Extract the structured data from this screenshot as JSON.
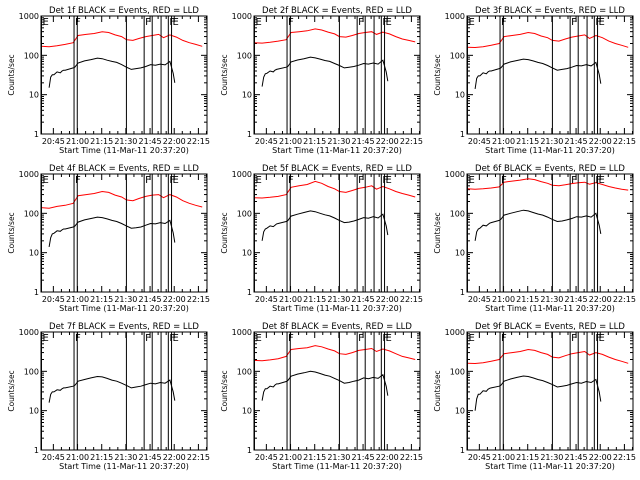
{
  "chart_data": {
    "type": "line",
    "ylabel": "Counts/sec",
    "xlabel": "Start Time (11-Mar-11 20:37:20)",
    "x_tick_labels": [
      "20:45",
      "21:00",
      "21:15",
      "21:30",
      "21:45",
      "22:00",
      "22:15"
    ],
    "x_tick_minutes": [
      7.67,
      22.67,
      37.67,
      52.67,
      67.67,
      82.67,
      97.67
    ],
    "xlim_minutes": [
      0,
      103
    ],
    "y_scale": "log",
    "ylim": [
      1,
      1000
    ],
    "y_tick_labels": [
      "1",
      "10",
      "100",
      "1000"
    ],
    "y_tick_values": [
      1,
      10,
      100,
      1000
    ],
    "colors": {
      "events": "#000000",
      "lld": "#ff0000",
      "axes": "#000000"
    },
    "markers": [
      {
        "label": "E",
        "minute": 0.3
      },
      {
        "label": "F",
        "minute": 20.5
      },
      {
        "label": "",
        "minute": 22.5
      },
      {
        "label": "",
        "minute": 53.0
      },
      {
        "label": "F",
        "minute": 64.0
      },
      {
        "label": "",
        "minute": 69.0
      },
      {
        "label": "",
        "minute": 74.5
      },
      {
        "label": "F",
        "minute": 79.0
      },
      {
        "label": "E",
        "minute": 81.0
      }
    ],
    "panels": [
      {
        "title": "Det 1f BLACK = Events, RED = LLD",
        "events": {
          "minutes": [
            5,
            6,
            7,
            8,
            10,
            12,
            13,
            14,
            15,
            20,
            21,
            23,
            27,
            31,
            35,
            38,
            41,
            44,
            47,
            50,
            53,
            56,
            59,
            62,
            65,
            68,
            71,
            74,
            77,
            80,
            82,
            83
          ],
          "values": [
            15,
            28,
            32,
            32,
            38,
            36,
            40,
            42,
            42,
            48,
            50,
            64,
            72,
            78,
            85,
            82,
            75,
            70,
            66,
            58,
            50,
            44,
            46,
            48,
            52,
            58,
            56,
            60,
            57,
            70,
            35,
            20
          ]
        },
        "lld": {
          "minutes": [
            0,
            5,
            10,
            15,
            20,
            23,
            28,
            33,
            38,
            42,
            46,
            50,
            53,
            57,
            61,
            65,
            69,
            73,
            76,
            80,
            84,
            88,
            92,
            96,
            100
          ],
          "values": [
            170,
            165,
            175,
            190,
            210,
            320,
            340,
            360,
            400,
            380,
            330,
            300,
            250,
            240,
            270,
            300,
            320,
            340,
            280,
            330,
            290,
            240,
            210,
            190,
            170
          ]
        }
      },
      {
        "title": "Det 2f BLACK = Events, RED = LLD",
        "events": {
          "minutes": [
            5,
            6,
            7,
            8,
            10,
            12,
            13,
            14,
            15,
            20,
            21,
            23,
            27,
            31,
            35,
            38,
            41,
            44,
            47,
            50,
            53,
            56,
            59,
            62,
            65,
            68,
            71,
            74,
            77,
            80,
            82,
            83
          ],
          "values": [
            16,
            28,
            34,
            35,
            40,
            38,
            42,
            44,
            45,
            50,
            52,
            68,
            76,
            82,
            90,
            86,
            80,
            74,
            70,
            62,
            55,
            48,
            50,
            52,
            56,
            62,
            60,
            64,
            60,
            75,
            38,
            22
          ]
        },
        "lld": {
          "minutes": [
            0,
            5,
            10,
            15,
            20,
            23,
            28,
            33,
            38,
            42,
            46,
            50,
            53,
            57,
            61,
            65,
            69,
            73,
            76,
            80,
            84,
            88,
            92,
            96,
            100
          ],
          "values": [
            210,
            205,
            215,
            230,
            250,
            380,
            400,
            420,
            470,
            440,
            390,
            350,
            300,
            290,
            320,
            360,
            380,
            400,
            340,
            390,
            350,
            300,
            260,
            240,
            220
          ]
        }
      },
      {
        "title": "Det 3f BLACK = Events, RED = LLD",
        "events": {
          "minutes": [
            5,
            6,
            7,
            8,
            10,
            12,
            13,
            14,
            15,
            20,
            21,
            23,
            27,
            31,
            35,
            38,
            41,
            44,
            47,
            50,
            53,
            56,
            59,
            62,
            65,
            68,
            71,
            74,
            77,
            80,
            82,
            83
          ],
          "values": [
            14,
            26,
            30,
            30,
            36,
            34,
            38,
            40,
            40,
            46,
            48,
            60,
            68,
            74,
            80,
            78,
            72,
            66,
            62,
            55,
            48,
            42,
            44,
            46,
            50,
            55,
            54,
            58,
            54,
            66,
            33,
            19
          ]
        },
        "lld": {
          "minutes": [
            0,
            5,
            10,
            15,
            20,
            23,
            28,
            33,
            38,
            42,
            46,
            50,
            53,
            57,
            61,
            65,
            69,
            73,
            76,
            80,
            84,
            88,
            92,
            96,
            100
          ],
          "values": [
            160,
            158,
            165,
            180,
            200,
            300,
            320,
            340,
            380,
            360,
            310,
            280,
            240,
            230,
            260,
            290,
            310,
            330,
            270,
            320,
            280,
            230,
            200,
            180,
            160
          ]
        }
      },
      {
        "title": "Det 4f BLACK = Events, RED = LLD",
        "events": {
          "minutes": [
            5,
            6,
            7,
            8,
            10,
            12,
            13,
            14,
            15,
            20,
            21,
            23,
            27,
            31,
            35,
            38,
            41,
            44,
            47,
            50,
            53,
            56,
            59,
            62,
            65,
            68,
            71,
            74,
            77,
            80,
            82,
            83
          ],
          "values": [
            14,
            24,
            30,
            31,
            36,
            35,
            38,
            40,
            40,
            45,
            47,
            60,
            68,
            74,
            80,
            78,
            72,
            66,
            62,
            55,
            48,
            42,
            43,
            45,
            50,
            55,
            54,
            58,
            55,
            66,
            32,
            18
          ]
        },
        "lld": {
          "minutes": [
            0,
            5,
            10,
            15,
            20,
            23,
            28,
            33,
            38,
            42,
            46,
            50,
            53,
            57,
            61,
            65,
            69,
            73,
            76,
            80,
            84,
            88,
            92,
            96,
            100
          ],
          "values": [
            140,
            135,
            150,
            160,
            180,
            280,
            300,
            320,
            360,
            340,
            290,
            260,
            220,
            210,
            240,
            270,
            290,
            300,
            250,
            300,
            260,
            210,
            180,
            160,
            145
          ]
        }
      },
      {
        "title": "Det 5f BLACK = Events, RED = LLD",
        "events": {
          "minutes": [
            5,
            6,
            7,
            8,
            10,
            12,
            13,
            14,
            15,
            20,
            21,
            23,
            27,
            31,
            35,
            38,
            41,
            44,
            47,
            50,
            53,
            56,
            59,
            62,
            65,
            68,
            71,
            74,
            77,
            80,
            82,
            83
          ],
          "values": [
            20,
            34,
            40,
            42,
            48,
            46,
            50,
            54,
            55,
            62,
            65,
            85,
            95,
            105,
            115,
            110,
            100,
            92,
            86,
            76,
            66,
            58,
            60,
            64,
            70,
            78,
            75,
            82,
            76,
            95,
            48,
            28
          ]
        },
        "lld": {
          "minutes": [
            0,
            5,
            10,
            15,
            20,
            23,
            28,
            33,
            38,
            42,
            46,
            50,
            53,
            57,
            61,
            65,
            69,
            73,
            76,
            80,
            84,
            88,
            92,
            96,
            100
          ],
          "values": [
            250,
            245,
            255,
            270,
            300,
            460,
            500,
            540,
            650,
            580,
            480,
            420,
            360,
            340,
            380,
            430,
            460,
            500,
            410,
            480,
            420,
            360,
            320,
            290,
            260
          ]
        }
      },
      {
        "title": "Det 6f BLACK = Events, RED = LLD",
        "events": {
          "minutes": [
            5,
            6,
            7,
            8,
            10,
            12,
            13,
            14,
            15,
            20,
            21,
            23,
            27,
            31,
            35,
            38,
            41,
            44,
            47,
            50,
            53,
            56,
            59,
            62,
            65,
            68,
            71,
            74,
            77,
            80,
            82,
            83
          ],
          "values": [
            20,
            34,
            40,
            42,
            50,
            48,
            52,
            56,
            58,
            66,
            70,
            90,
            100,
            110,
            120,
            115,
            105,
            96,
            90,
            80,
            70,
            62,
            64,
            68,
            74,
            82,
            80,
            86,
            80,
            100,
            50,
            30
          ]
        },
        "lld": {
          "minutes": [
            0,
            5,
            10,
            15,
            20,
            23,
            28,
            33,
            38,
            42,
            46,
            50,
            53,
            57,
            61,
            65,
            69,
            73,
            76,
            80,
            84,
            88,
            92,
            96,
            100
          ],
          "values": [
            420,
            410,
            420,
            440,
            470,
            620,
            660,
            700,
            760,
            720,
            640,
            580,
            520,
            500,
            530,
            570,
            600,
            620,
            550,
            600,
            540,
            480,
            440,
            410,
            390
          ]
        }
      },
      {
        "title": "Det 7f BLACK = Events, RED = LLD",
        "events": {
          "minutes": [
            5,
            6,
            7,
            8,
            10,
            12,
            13,
            14,
            15,
            20,
            21,
            23,
            27,
            31,
            35,
            38,
            41,
            44,
            47,
            50,
            53,
            56,
            59,
            62,
            65,
            68,
            71,
            74,
            77,
            80,
            82,
            83
          ],
          "values": [
            16,
            26,
            30,
            30,
            34,
            33,
            36,
            38,
            38,
            42,
            44,
            56,
            62,
            68,
            74,
            72,
            66,
            60,
            56,
            50,
            44,
            38,
            40,
            42,
            46,
            50,
            48,
            52,
            50,
            60,
            30,
            18
          ]
        },
        "lld": null
      },
      {
        "title": "Det 8f BLACK = Events, RED = LLD",
        "events": {
          "minutes": [
            5,
            6,
            7,
            8,
            10,
            12,
            13,
            14,
            15,
            20,
            21,
            23,
            27,
            31,
            35,
            38,
            41,
            44,
            47,
            50,
            53,
            56,
            59,
            62,
            65,
            68,
            71,
            74,
            77,
            80,
            82,
            83
          ],
          "values": [
            18,
            30,
            36,
            36,
            42,
            40,
            45,
            48,
            48,
            55,
            58,
            75,
            85,
            92,
            100,
            96,
            88,
            80,
            75,
            66,
            58,
            50,
            52,
            56,
            60,
            68,
            65,
            70,
            66,
            82,
            42,
            24
          ]
        },
        "lld": {
          "minutes": [
            0,
            5,
            10,
            15,
            20,
            23,
            28,
            33,
            38,
            42,
            46,
            50,
            53,
            57,
            61,
            65,
            69,
            73,
            76,
            80,
            84,
            88,
            92,
            96,
            100
          ],
          "values": [
            190,
            185,
            195,
            210,
            240,
            360,
            380,
            400,
            450,
            420,
            370,
            330,
            280,
            270,
            300,
            340,
            360,
            380,
            320,
            370,
            330,
            280,
            240,
            220,
            200
          ]
        }
      },
      {
        "title": "Det 9f BLACK = Events, RED = LLD",
        "events": {
          "minutes": [
            5,
            6,
            7,
            8,
            10,
            12,
            13,
            14,
            15,
            20,
            21,
            23,
            27,
            31,
            35,
            38,
            41,
            44,
            47,
            50,
            53,
            56,
            59,
            62,
            65,
            68,
            71,
            74,
            77,
            80,
            82,
            83
          ],
          "values": [
            10,
            20,
            26,
            26,
            32,
            31,
            35,
            37,
            38,
            42,
            44,
            56,
            64,
            70,
            76,
            74,
            68,
            62,
            58,
            52,
            46,
            40,
            42,
            44,
            48,
            52,
            50,
            55,
            52,
            62,
            30,
            17
          ]
        },
        "lld": {
          "minutes": [
            0,
            5,
            10,
            15,
            20,
            23,
            28,
            33,
            38,
            42,
            46,
            50,
            53,
            57,
            61,
            65,
            69,
            73,
            76,
            80,
            84,
            88,
            92,
            96,
            100
          ],
          "values": [
            160,
            158,
            165,
            180,
            200,
            280,
            300,
            320,
            360,
            340,
            300,
            270,
            230,
            220,
            250,
            280,
            300,
            320,
            260,
            300,
            270,
            230,
            200,
            180,
            160
          ]
        }
      }
    ]
  }
}
